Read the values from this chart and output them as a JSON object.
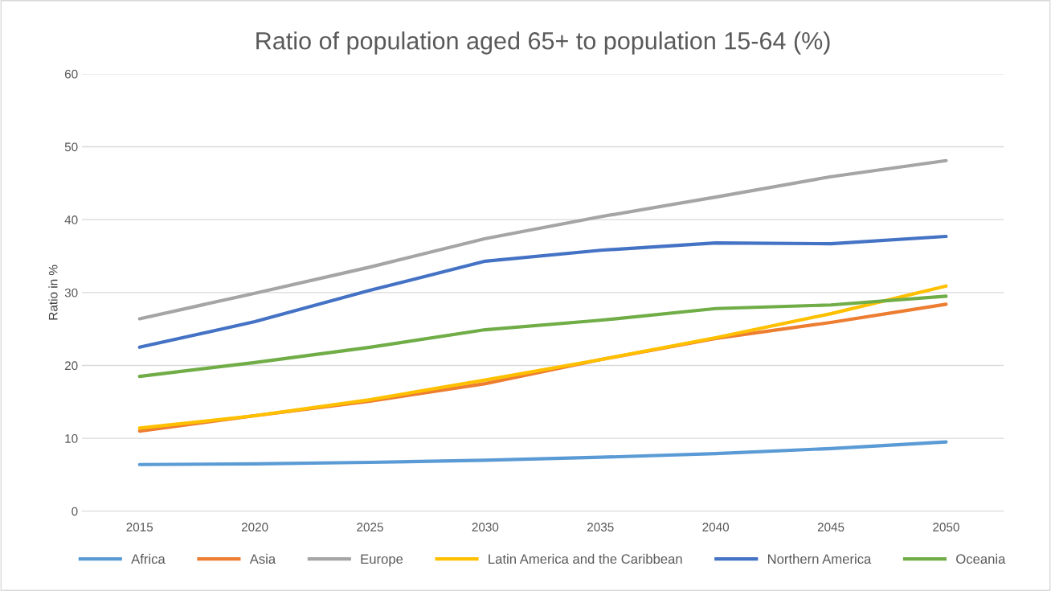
{
  "chart_data": {
    "type": "line",
    "title": "Ratio of population aged 65+ to population 15-64 (%)",
    "ylabel": "Ratio in %",
    "categories": [
      "2015",
      "2020",
      "2025",
      "2030",
      "2035",
      "2040",
      "2045",
      "2050"
    ],
    "series": [
      {
        "name": "Africa",
        "color": "#5b9bd5",
        "values": [
          6.4,
          6.5,
          6.7,
          7.0,
          7.4,
          7.9,
          8.6,
          9.5
        ]
      },
      {
        "name": "Asia",
        "color": "#ed7d31",
        "values": [
          11.0,
          13.1,
          15.1,
          17.5,
          20.8,
          23.7,
          25.9,
          28.4
        ]
      },
      {
        "name": "Europe",
        "color": "#a5a5a5",
        "values": [
          26.4,
          29.9,
          33.5,
          37.4,
          40.4,
          43.1,
          45.9,
          48.1
        ]
      },
      {
        "name": "Latin America and the Caribbean",
        "color": "#ffc000",
        "values": [
          11.4,
          13.1,
          15.3,
          18.0,
          20.8,
          23.8,
          27.1,
          30.9
        ]
      },
      {
        "name": "Northern America",
        "color": "#4472c4",
        "values": [
          22.5,
          26.0,
          30.3,
          34.3,
          35.8,
          36.8,
          36.7,
          37.7
        ]
      },
      {
        "name": "Oceania",
        "color": "#70ad47",
        "values": [
          18.5,
          20.4,
          22.5,
          24.9,
          26.2,
          27.8,
          28.3,
          29.5
        ]
      }
    ],
    "ylim": [
      0,
      60
    ],
    "yticks": [
      0,
      10,
      20,
      30,
      40,
      50,
      60
    ],
    "grid": "y",
    "legend": "bottom",
    "marker": "none",
    "line_style": "solid"
  }
}
